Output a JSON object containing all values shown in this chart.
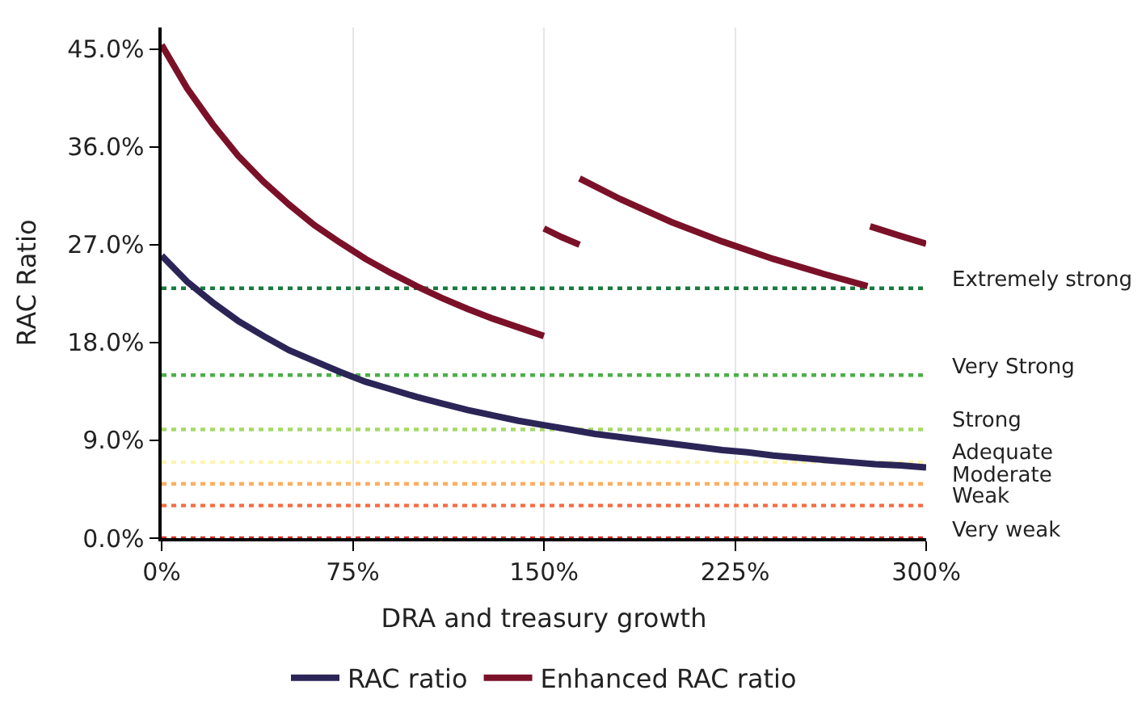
{
  "chart_data": {
    "type": "line",
    "xlabel": "DRA and treasury growth",
    "ylabel": "RAC Ratio",
    "xlim": [
      0,
      300
    ],
    "ylim": [
      0,
      47
    ],
    "xticks": [
      {
        "value": 0,
        "label": "0%"
      },
      {
        "value": 75,
        "label": "75%"
      },
      {
        "value": 150,
        "label": "150%"
      },
      {
        "value": 225,
        "label": "225%"
      },
      {
        "value": 300,
        "label": "300%"
      }
    ],
    "yticks": [
      {
        "value": 0,
        "label": "0.0%"
      },
      {
        "value": 9,
        "label": "9.0%"
      },
      {
        "value": 18,
        "label": "18.0%"
      },
      {
        "value": 27,
        "label": "27.0%"
      },
      {
        "value": 36,
        "label": "36.0%"
      },
      {
        "value": 45,
        "label": "45.0%"
      }
    ],
    "grid": "x",
    "legend": "bottom",
    "marker": "none",
    "line_style": "solid",
    "series": [
      {
        "name": "RAC ratio",
        "color": "#2b2557",
        "x": [
          0,
          10,
          20,
          30,
          40,
          50,
          60,
          70,
          80,
          90,
          100,
          110,
          120,
          130,
          140,
          150,
          160,
          170,
          180,
          190,
          200,
          210,
          220,
          230,
          240,
          250,
          260,
          270,
          280,
          290,
          300
        ],
        "values": [
          26.0,
          23.6,
          21.7,
          20.0,
          18.6,
          17.3,
          16.3,
          15.3,
          14.4,
          13.7,
          13.0,
          12.4,
          11.8,
          11.3,
          10.8,
          10.4,
          10.0,
          9.6,
          9.3,
          9.0,
          8.7,
          8.4,
          8.1,
          7.9,
          7.6,
          7.4,
          7.2,
          7.0,
          6.8,
          6.7,
          6.5
        ]
      },
      {
        "name": "Enhanced RAC ratio",
        "color": "#7b1128",
        "x": [
          0,
          10,
          20,
          30,
          40,
          50,
          60,
          70,
          80,
          90,
          100,
          110,
          120,
          130,
          140,
          150,
          null,
          150,
          157,
          164,
          null,
          164,
          180,
          200,
          220,
          240,
          260,
          277,
          null,
          278,
          290,
          300
        ],
        "values": [
          45.4,
          41.4,
          38.1,
          35.2,
          32.8,
          30.7,
          28.8,
          27.2,
          25.7,
          24.4,
          23.2,
          22.1,
          21.1,
          20.2,
          19.4,
          18.6,
          null,
          28.5,
          27.7,
          27.0,
          null,
          33.1,
          31.2,
          29.1,
          27.3,
          25.7,
          24.3,
          23.2,
          null,
          28.7,
          27.8,
          27.1
        ]
      }
    ],
    "ref_lines": [
      {
        "axis": "y",
        "value": 23,
        "label": "Extremely strong",
        "color": "#1a7a3f",
        "line_style": "dotted"
      },
      {
        "axis": "y",
        "value": 15,
        "label": "Very Strong",
        "color": "#4daf4a",
        "line_style": "dotted"
      },
      {
        "axis": "y",
        "value": 10,
        "label": "Strong",
        "color": "#a6d96a",
        "line_style": "dotted"
      },
      {
        "axis": "y",
        "value": 7,
        "label": "Adequate",
        "color": "#fdf5b0",
        "line_style": "dotted"
      },
      {
        "axis": "y",
        "value": 5,
        "label": "Moderate",
        "color": "#fdae61",
        "line_style": "dotted"
      },
      {
        "axis": "y",
        "value": 3,
        "label": "Weak",
        "color": "#f46d43",
        "line_style": "dotted"
      },
      {
        "axis": "y",
        "value": 0,
        "label": "Very weak",
        "color": "#d73027",
        "line_style": "dotted"
      }
    ]
  }
}
